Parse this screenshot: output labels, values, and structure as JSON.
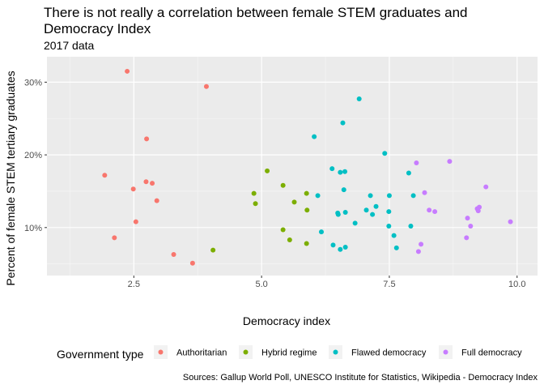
{
  "chart_data": {
    "type": "scatter",
    "title": "There is not really a correlation between female STEM graduates and Democracy Index",
    "subtitle": "2017 data",
    "caption": "Sources: Gallup World Poll, UNESCO Institute for Statistics, Wikipedia - Democracy Index",
    "xlabel": "Democracy index",
    "ylabel": "Percent of female STEM tertiary graduates",
    "xlim": [
      0.8,
      10.4
    ],
    "ylim": [
      0.034,
      0.335
    ],
    "x_ticks": [
      2.5,
      5.0,
      7.5,
      10.0
    ],
    "x_tick_labels": [
      "2.5",
      "5.0",
      "7.5",
      "10.0"
    ],
    "y_ticks": [
      0.1,
      0.2,
      0.3
    ],
    "y_tick_labels": [
      "10%",
      "20%",
      "30%"
    ],
    "grid": true,
    "legend": {
      "title": "Government type",
      "position": "bottom"
    },
    "series": [
      {
        "name": "Authoritarian",
        "color": "#F8766D",
        "points": [
          [
            2.37,
            0.315
          ],
          [
            3.92,
            0.294
          ],
          [
            2.75,
            0.222
          ],
          [
            1.93,
            0.172
          ],
          [
            2.74,
            0.163
          ],
          [
            2.86,
            0.161
          ],
          [
            2.49,
            0.153
          ],
          [
            2.95,
            0.137
          ],
          [
            2.54,
            0.108
          ],
          [
            2.12,
            0.086
          ],
          [
            3.28,
            0.063
          ],
          [
            3.65,
            0.051
          ]
        ]
      },
      {
        "name": "Hybrid regime",
        "color": "#7CAE00",
        "points": [
          [
            5.11,
            0.178
          ],
          [
            5.42,
            0.158
          ],
          [
            4.85,
            0.147
          ],
          [
            5.88,
            0.147
          ],
          [
            4.88,
            0.133
          ],
          [
            5.64,
            0.135
          ],
          [
            5.89,
            0.124
          ],
          [
            5.42,
            0.097
          ],
          [
            5.55,
            0.083
          ],
          [
            5.88,
            0.078
          ],
          [
            4.05,
            0.069
          ]
        ]
      },
      {
        "name": "Flawed democracy",
        "color": "#00BFC4",
        "points": [
          [
            6.91,
            0.277
          ],
          [
            6.59,
            0.244
          ],
          [
            6.03,
            0.225
          ],
          [
            7.41,
            0.202
          ],
          [
            6.38,
            0.181
          ],
          [
            6.54,
            0.176
          ],
          [
            6.63,
            0.177
          ],
          [
            7.88,
            0.175
          ],
          [
            6.61,
            0.152
          ],
          [
            6.1,
            0.144
          ],
          [
            7.13,
            0.144
          ],
          [
            7.5,
            0.144
          ],
          [
            7.97,
            0.144
          ],
          [
            7.24,
            0.129
          ],
          [
            7.05,
            0.124
          ],
          [
            7.49,
            0.122
          ],
          [
            6.64,
            0.121
          ],
          [
            6.49,
            0.12
          ],
          [
            6.5,
            0.118
          ],
          [
            7.17,
            0.118
          ],
          [
            6.83,
            0.106
          ],
          [
            7.49,
            0.102
          ],
          [
            7.92,
            0.102
          ],
          [
            6.17,
            0.094
          ],
          [
            7.59,
            0.089
          ],
          [
            6.4,
            0.076
          ],
          [
            6.64,
            0.073
          ],
          [
            7.64,
            0.072
          ],
          [
            6.54,
            0.07
          ]
        ]
      },
      {
        "name": "Full democracy",
        "color": "#C77CFF",
        "points": [
          [
            8.68,
            0.191
          ],
          [
            8.03,
            0.189
          ],
          [
            9.39,
            0.156
          ],
          [
            8.19,
            0.148
          ],
          [
            9.26,
            0.128
          ],
          [
            9.22,
            0.126
          ],
          [
            9.24,
            0.123
          ],
          [
            8.28,
            0.124
          ],
          [
            8.39,
            0.122
          ],
          [
            9.03,
            0.113
          ],
          [
            9.87,
            0.108
          ],
          [
            9.09,
            0.102
          ],
          [
            9.01,
            0.086
          ],
          [
            8.12,
            0.077
          ],
          [
            8.07,
            0.067
          ]
        ]
      }
    ]
  }
}
